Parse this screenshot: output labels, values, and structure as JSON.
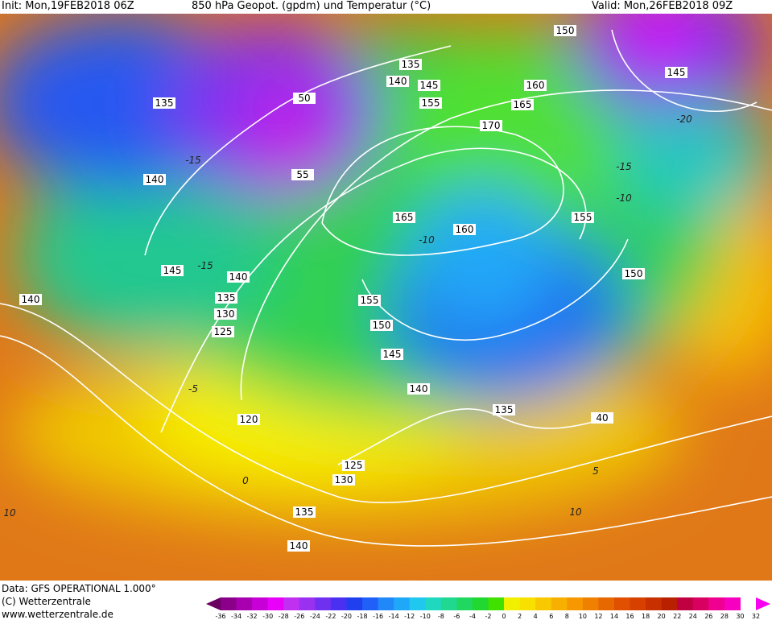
{
  "header": {
    "init": "Init: Mon,19FEB2018 06Z",
    "title": "850 hPa Geopot. (gpdm) und Temperatur (°C)",
    "valid": "Valid: Mon,26FEB2018 09Z"
  },
  "footer": {
    "data": "Data: GFS OPERATIONAL 1.000°",
    "copyright": "(C) Wetterzentrale",
    "url": "www.wetterzentrale.de"
  },
  "map": {
    "contour_labels": [
      "150",
      "135",
      "140",
      "145",
      "155",
      "160",
      "165",
      "145",
      "135",
      "50",
      "55",
      "170",
      "140",
      "165",
      "160",
      "155",
      "145",
      "140",
      "150",
      "140",
      "135",
      "155",
      "130",
      "150",
      "125",
      "145",
      "140",
      "135",
      "40",
      "120",
      "125",
      "130",
      "135",
      "140"
    ],
    "isotherm_labels": [
      "-15",
      "-15",
      "-15",
      "-10",
      "-10",
      "-5",
      "0",
      "5",
      "10",
      "10",
      "-20"
    ]
  },
  "colorbar": {
    "ticks": [
      -36,
      -34,
      -32,
      -30,
      -28,
      -26,
      -24,
      -22,
      -20,
      -18,
      -16,
      -14,
      -12,
      -10,
      -8,
      -6,
      -4,
      -2,
      0,
      2,
      4,
      6,
      8,
      10,
      12,
      14,
      16,
      18,
      20,
      22,
      24,
      26,
      28,
      30,
      32
    ],
    "colors": [
      "#6a0060",
      "#8a0088",
      "#a800b0",
      "#c800d8",
      "#e800f8",
      "#c030f0",
      "#9a30f0",
      "#7030f0",
      "#4a30f0",
      "#2040f0",
      "#2060f8",
      "#2088f8",
      "#20a8f8",
      "#20c8f0",
      "#20d8c0",
      "#20d890",
      "#20d860",
      "#20d830",
      "#40e000",
      "#f0f000",
      "#f8e000",
      "#f8c800",
      "#f8b000",
      "#f89800",
      "#f08000",
      "#e86800",
      "#e05000",
      "#d84000",
      "#c83000",
      "#b82000",
      "#c00040",
      "#d80060",
      "#f00090",
      "#f800c0",
      "#f800f0"
    ]
  }
}
